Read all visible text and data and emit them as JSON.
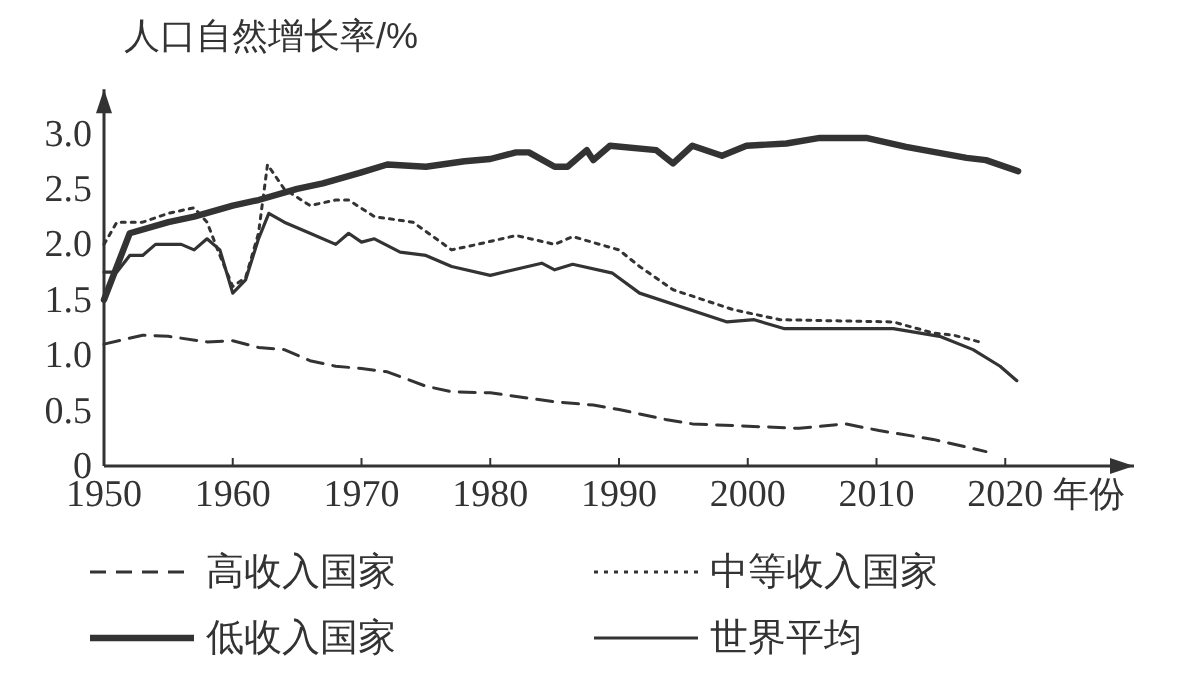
{
  "chart_data": {
    "type": "line",
    "ylabel": "人口自然增长率/%",
    "xlabel": "年份",
    "xlim": [
      1950,
      2030
    ],
    "xticks": [
      1950,
      1960,
      1970,
      1980,
      1990,
      2000,
      2010,
      2020
    ],
    "ylim": [
      0,
      3.4
    ],
    "yticks": [
      0,
      {
        "value": 0.5,
        "label": "0.5"
      },
      {
        "value": 1,
        "label": "1.0"
      },
      {
        "value": 1.5,
        "label": "1.5"
      },
      {
        "value": 2,
        "label": "2.0"
      },
      {
        "value": 2.5,
        "label": "2.5"
      },
      {
        "value": 3,
        "label": "3.0"
      }
    ],
    "grid": false,
    "legend": "bottom",
    "marker": "none",
    "series": [
      {
        "name": "高收入国家",
        "color": "#333333",
        "line_style": "dashed",
        "x": [
          1950,
          1953,
          1955,
          1958,
          1960,
          1962,
          1964,
          1966,
          1968,
          1970,
          1972,
          1975,
          1977,
          1980,
          1985,
          1988,
          1990,
          1993.6,
          1995.7,
          2004,
          2007.6,
          2010.2,
          2014.4,
          2018.5
        ],
        "values": [
          1.1,
          1.18,
          1.17,
          1.12,
          1.13,
          1.07,
          1.05,
          0.95,
          0.9,
          0.88,
          0.85,
          0.72,
          0.67,
          0.66,
          0.58,
          0.55,
          0.51,
          0.42,
          0.38,
          0.34,
          0.38,
          0.32,
          0.24,
          0.13
        ]
      },
      {
        "name": "中等收入国家",
        "color": "#333333",
        "line_style": "dotted",
        "x": [
          1950,
          1951,
          1953,
          1955,
          1957,
          1958,
          1959,
          1960,
          1961,
          1962,
          1962.7,
          1964,
          1966,
          1968,
          1969,
          1971,
          1974,
          1977,
          1979,
          1982,
          1985,
          1986.4,
          1990,
          1991.6,
          1994.2,
          1998.9,
          2002.5,
          2011.3,
          2014.4,
          2016,
          2018
        ],
        "values": [
          2.0,
          2.2,
          2.2,
          2.28,
          2.33,
          2.2,
          1.9,
          1.62,
          1.7,
          2.1,
          2.72,
          2.5,
          2.35,
          2.4,
          2.4,
          2.25,
          2.2,
          1.95,
          2.0,
          2.08,
          2.0,
          2.07,
          1.95,
          1.8,
          1.59,
          1.41,
          1.32,
          1.3,
          1.2,
          1.18,
          1.12
        ]
      },
      {
        "name": "低收入国家",
        "color": "#333333",
        "line_style": "solid",
        "x": [
          1950,
          1952,
          1955,
          1957,
          1960,
          1962,
          1965,
          1967,
          1970,
          1972,
          1975,
          1978,
          1980,
          1982,
          1983,
          1985,
          1986,
          1987.5,
          1988,
          1989.3,
          1992.9,
          1994.2,
          1995.7,
          1998,
          1999.9,
          2003,
          2005.6,
          2009.2,
          2012.3,
          2017,
          2018.5,
          2021
        ],
        "values": [
          1.5,
          2.1,
          2.2,
          2.25,
          2.35,
          2.4,
          2.5,
          2.55,
          2.65,
          2.72,
          2.7,
          2.75,
          2.77,
          2.83,
          2.83,
          2.7,
          2.7,
          2.85,
          2.76,
          2.89,
          2.85,
          2.73,
          2.89,
          2.8,
          2.89,
          2.91,
          2.96,
          2.96,
          2.88,
          2.78,
          2.76,
          2.66
        ]
      },
      {
        "name": "世界平均",
        "color": "#333333",
        "line_style": "solid",
        "x": [
          1950,
          1951,
          1952,
          1953,
          1954,
          1956,
          1957,
          1958,
          1959,
          1960,
          1961,
          1962,
          1962.8,
          1964,
          1966,
          1968,
          1969,
          1970,
          1971,
          1973,
          1975,
          1977,
          1980,
          1984,
          1985,
          1986.4,
          1989.5,
          1991.6,
          1998.4,
          2000.5,
          2002.8,
          2011.3,
          2014.9,
          2017.5,
          2019.6,
          2020.9
        ],
        "values": [
          1.75,
          1.75,
          1.9,
          1.9,
          2.0,
          2.0,
          1.95,
          2.05,
          1.95,
          1.56,
          1.68,
          2.05,
          2.28,
          2.2,
          2.1,
          2.0,
          2.1,
          2.02,
          2.05,
          1.93,
          1.9,
          1.8,
          1.72,
          1.83,
          1.77,
          1.82,
          1.74,
          1.56,
          1.3,
          1.32,
          1.24,
          1.24,
          1.17,
          1.05,
          0.9,
          0.77
        ]
      }
    ]
  }
}
